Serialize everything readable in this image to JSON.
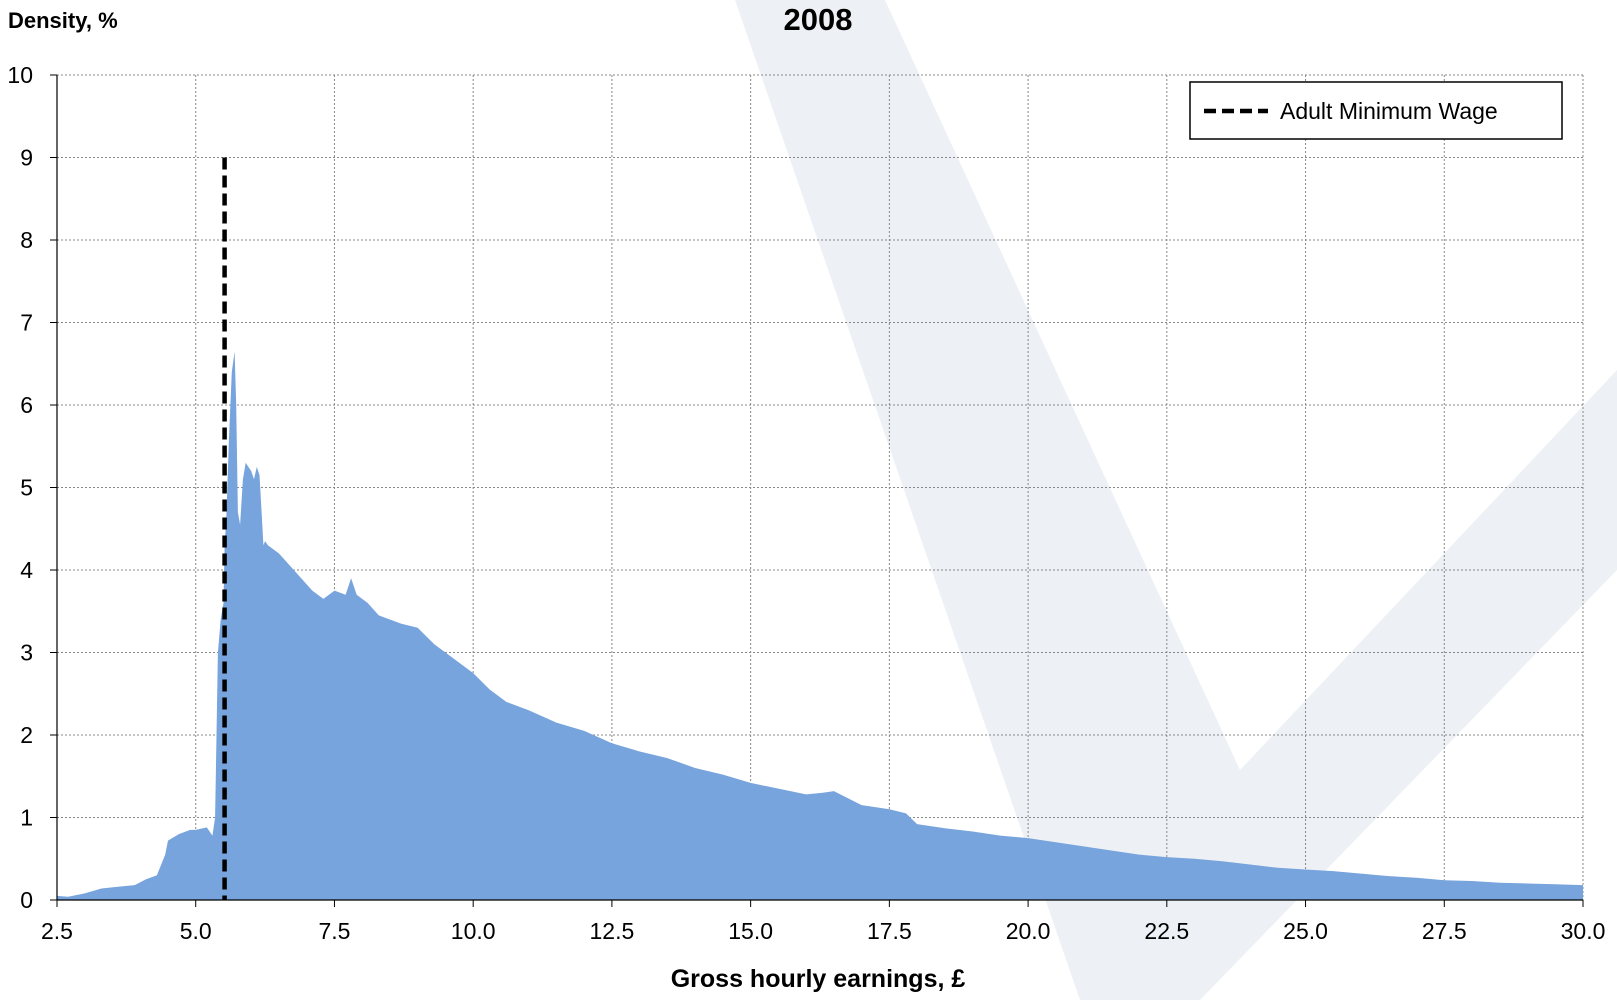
{
  "chart_data": {
    "type": "area",
    "title": "2008",
    "ylabel": "Density, %",
    "xlabel": "Gross hourly earnings, £",
    "xlim": [
      2.5,
      30.0
    ],
    "ylim": [
      0,
      10
    ],
    "x_ticks": [
      "2.5",
      "5.0",
      "7.5",
      "10.0",
      "12.5",
      "15.0",
      "17.5",
      "20.0",
      "22.5",
      "25.0",
      "27.5",
      "30.0"
    ],
    "y_ticks": [
      "0",
      "1",
      "2",
      "3",
      "4",
      "5",
      "6",
      "7",
      "8",
      "9",
      "10"
    ],
    "grid": true,
    "legend_position": "top-right",
    "fill_color": "#77a4dd",
    "series": [
      {
        "x": [
          2.5,
          2.7,
          3.0,
          3.3,
          3.6,
          3.9,
          4.1,
          4.3,
          4.45,
          4.5,
          4.7,
          4.9,
          5.0,
          5.2,
          5.3,
          5.35,
          5.4,
          5.45,
          5.5,
          5.52,
          5.55,
          5.6,
          5.65,
          5.7,
          5.73,
          5.76,
          5.8,
          5.85,
          5.9,
          5.95,
          6.0,
          6.05,
          6.1,
          6.15,
          6.2,
          6.22,
          6.25,
          6.3,
          6.5,
          6.7,
          6.9,
          7.1,
          7.3,
          7.5,
          7.7,
          7.8,
          7.9,
          8.1,
          8.3,
          8.5,
          8.7,
          9.0,
          9.3,
          9.6,
          10.0,
          10.3,
          10.6,
          11.0,
          11.5,
          12.0,
          12.5,
          13.0,
          13.5,
          14.0,
          14.5,
          15.0,
          15.5,
          16.0,
          16.3,
          16.5,
          17.0,
          17.5,
          17.8,
          18.0,
          18.5,
          19.0,
          19.5,
          20.0,
          20.5,
          21.0,
          21.5,
          22.0,
          22.5,
          23.0,
          23.5,
          24.0,
          24.5,
          25.0,
          25.5,
          26.0,
          26.5,
          27.0,
          27.5,
          28.0,
          28.5,
          29.0,
          29.5,
          30.0
        ],
        "values": [
          0.05,
          0.04,
          0.08,
          0.14,
          0.16,
          0.18,
          0.25,
          0.3,
          0.55,
          0.72,
          0.8,
          0.85,
          0.85,
          0.88,
          0.78,
          1.0,
          3.0,
          3.4,
          3.6,
          4.3,
          4.6,
          5.6,
          6.4,
          6.65,
          6.0,
          4.7,
          4.55,
          5.1,
          5.3,
          5.25,
          5.2,
          5.1,
          5.25,
          5.15,
          4.55,
          4.3,
          4.35,
          4.3,
          4.2,
          4.05,
          3.9,
          3.75,
          3.65,
          3.75,
          3.7,
          3.9,
          3.7,
          3.6,
          3.45,
          3.4,
          3.35,
          3.3,
          3.1,
          2.95,
          2.75,
          2.55,
          2.4,
          2.3,
          2.15,
          2.05,
          1.9,
          1.8,
          1.72,
          1.6,
          1.52,
          1.42,
          1.35,
          1.28,
          1.3,
          1.32,
          1.15,
          1.1,
          1.05,
          0.92,
          0.87,
          0.83,
          0.78,
          0.75,
          0.7,
          0.65,
          0.6,
          0.55,
          0.52,
          0.5,
          0.47,
          0.43,
          0.39,
          0.37,
          0.35,
          0.32,
          0.29,
          0.27,
          0.24,
          0.23,
          0.21,
          0.2,
          0.19,
          0.18
        ]
      }
    ],
    "reference_lines": [
      {
        "name": "Adult Minimum Wage",
        "x": 5.52,
        "y_top": 9,
        "color": "#000000",
        "style": "dashed"
      }
    ]
  }
}
